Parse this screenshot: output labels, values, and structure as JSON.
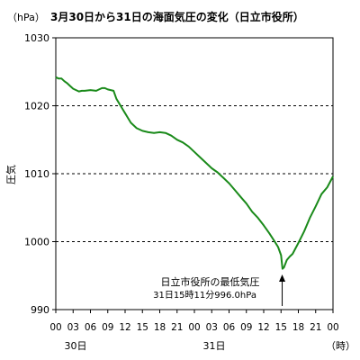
{
  "chart_data": {
    "type": "line",
    "title": "3月30日から31日の海面気圧の変化（日立市役所）",
    "unit_label": "（hPa）",
    "ylabel": "圧気",
    "x_unit_label": "（時）",
    "ylim": [
      990,
      1030
    ],
    "yticks": [
      "990",
      "1000",
      "1010",
      "1020",
      "1030"
    ],
    "ytick_values": [
      990,
      1000,
      1010,
      1020,
      1030
    ],
    "dashed_gridlines_at": [
      1000,
      1010,
      1020
    ],
    "xlim": [
      0,
      48
    ],
    "xtick_labels": [
      "00",
      "03",
      "06",
      "09",
      "12",
      "15",
      "18",
      "21",
      "00",
      "03",
      "06",
      "09",
      "12",
      "15",
      "18",
      "21",
      "00"
    ],
    "date_labels": [
      {
        "text": "30日",
        "x": 0
      },
      {
        "text": "31日",
        "x": 24
      }
    ],
    "line_color": "#1a8a1a",
    "series": [
      {
        "x": [
          0,
          0.5,
          1,
          1.5,
          2,
          2.5,
          3,
          3.5,
          4,
          4.5,
          5,
          6,
          7,
          8,
          8.5,
          9,
          10,
          10.5,
          11,
          11.5,
          12,
          12.5,
          13,
          14,
          15,
          16,
          17,
          18,
          19,
          20,
          21,
          22,
          23,
          24,
          25,
          26,
          27,
          28,
          29,
          30,
          31,
          32,
          33,
          34,
          35,
          36,
          37,
          38,
          38.5,
          39,
          39.25,
          39.5,
          40,
          40.5,
          41,
          42,
          43,
          44,
          45,
          46,
          47,
          48
        ],
        "values": [
          1024.2,
          1024.0,
          1024.0,
          1023.6,
          1023.3,
          1022.9,
          1022.5,
          1022.3,
          1022.1,
          1022.2,
          1022.2,
          1022.3,
          1022.2,
          1022.6,
          1022.6,
          1022.4,
          1022.2,
          1021.0,
          1020.3,
          1019.6,
          1018.9,
          1018.2,
          1017.5,
          1016.7,
          1016.3,
          1016.1,
          1016.0,
          1016.1,
          1016.0,
          1015.6,
          1015.0,
          1014.6,
          1014.0,
          1013.2,
          1012.4,
          1011.6,
          1010.8,
          1010.2,
          1009.4,
          1008.6,
          1007.6,
          1006.6,
          1005.6,
          1004.4,
          1003.5,
          1002.4,
          1001.2,
          999.9,
          999.2,
          998.0,
          996.0,
          996.2,
          997.3,
          997.8,
          998.2,
          999.8,
          1001.5,
          1003.5,
          1005.2,
          1007.0,
          1008.0,
          1009.6
        ]
      }
    ],
    "annotation": {
      "line1": "日立市役所の最低気圧",
      "line2": "31日15時11分996.0hPa",
      "x": 39.2,
      "value": 996.0
    }
  }
}
